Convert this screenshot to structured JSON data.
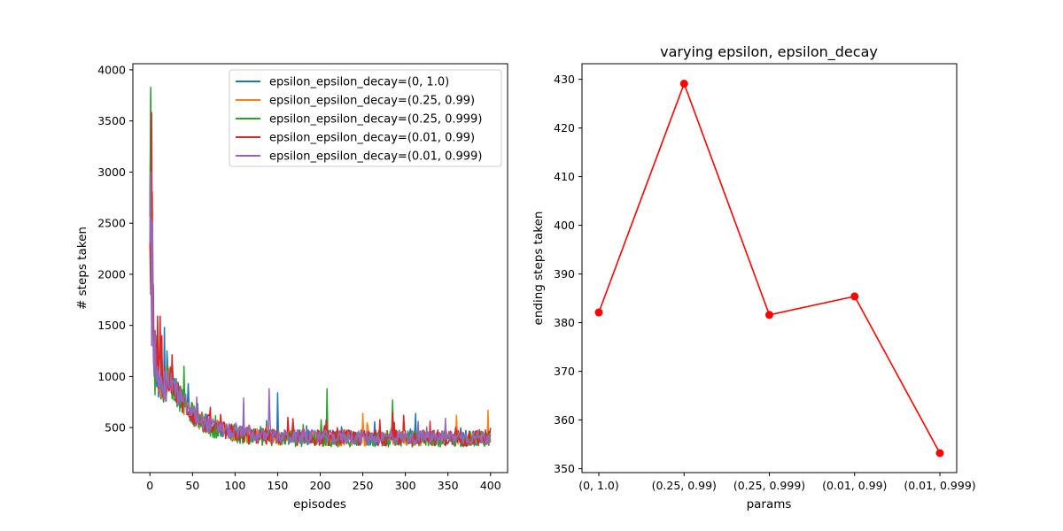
{
  "chart_data": [
    {
      "type": "line",
      "title": "",
      "xlabel": "episodes",
      "ylabel": "# steps taken",
      "xlim": [
        -20,
        420
      ],
      "ylim": [
        60,
        4060
      ],
      "xticks": [
        0,
        50,
        100,
        150,
        200,
        250,
        300,
        350,
        400
      ],
      "yticks": [
        500,
        1000,
        1500,
        2000,
        2500,
        3000,
        3500,
        4000
      ],
      "grid": false,
      "legend_position": "top-right",
      "series": [
        {
          "name": "epsilon_epsilon_decay=(0, 1.0)",
          "color": "#1f77b4",
          "start_values": [
            2600,
            3780,
            1550,
            2400,
            1300,
            1050,
            1400,
            1150,
            900,
            1100,
            800,
            1000,
            850,
            780,
            1200,
            900,
            750,
            1480,
            820,
            760
          ],
          "peaks": [
            [
              150,
              840
            ],
            [
              45,
              930
            ],
            [
              20,
              1250
            ]
          ],
          "plateau": 400,
          "noise": 75
        },
        {
          "name": "epsilon_epsilon_decay=(0.25, 0.99)",
          "color": "#ff7f0e",
          "start_values": [
            2300,
            3500,
            1700,
            2800,
            1400,
            1100,
            1300,
            1050,
            980,
            1250,
            860,
            980,
            800,
            900,
            1100,
            780,
            850,
            900,
            760,
            820
          ],
          "peaks": [
            [
              397,
              670
            ],
            [
              360,
              620
            ],
            [
              250,
              640
            ]
          ],
          "plateau": 395,
          "noise": 75
        },
        {
          "name": "epsilon_epsilon_decay=(0.25, 0.999)",
          "color": "#2ca02c",
          "start_values": [
            2560,
            3830,
            1700,
            2200,
            1500,
            1200,
            820,
            1400,
            1100,
            1050,
            950,
            1000,
            870,
            900,
            1200,
            850,
            780,
            1000,
            950,
            900
          ],
          "peaks": [
            [
              208,
              880
            ],
            [
              40,
              1100
            ],
            [
              285,
              770
            ]
          ],
          "plateau": 390,
          "noise": 80
        },
        {
          "name": "epsilon_epsilon_decay=(0.01, 0.99)",
          "color": "#d62728",
          "start_values": [
            2320,
            1800,
            3580,
            1400,
            1900,
            1100,
            1450,
            1300,
            1000,
            1590,
            880,
            1150,
            820,
            1000,
            1400,
            800,
            900,
            1100,
            870,
            780
          ],
          "peaks": [
            [
              285,
              650
            ],
            [
              298,
              620
            ],
            [
              12,
              1590
            ]
          ],
          "plateau": 400,
          "noise": 80
        },
        {
          "name": "epsilon_epsilon_decay=(0.01, 0.999)",
          "color": "#9467bd",
          "start_values": [
            2300,
            3000,
            1300,
            2520,
            1200,
            1000,
            1450,
            1050,
            950,
            1100,
            900,
            1050,
            850,
            1000,
            950,
            880,
            800,
            1050,
            820,
            760
          ],
          "peaks": [
            [
              140,
              880
            ],
            [
              110,
              790
            ],
            [
              55,
              800
            ]
          ],
          "plateau": 405,
          "noise": 70
        }
      ]
    },
    {
      "type": "line",
      "title": "varying epsilon, epsilon_decay",
      "xlabel": "params",
      "ylabel": "ending steps taken",
      "categories": [
        "(0, 1.0)",
        "(0.25, 0.99)",
        "(0.25, 0.999)",
        "(0.01, 0.99)",
        "(0.01, 0.999)"
      ],
      "values": [
        382.1,
        429.1,
        381.6,
        385.4,
        353.2
      ],
      "ylim": [
        349.2,
        433.2
      ],
      "yticks": [
        350,
        360,
        370,
        380,
        390,
        400,
        410,
        420,
        430
      ],
      "grid": false,
      "color": "#ff0000",
      "marker": "circle"
    }
  ]
}
